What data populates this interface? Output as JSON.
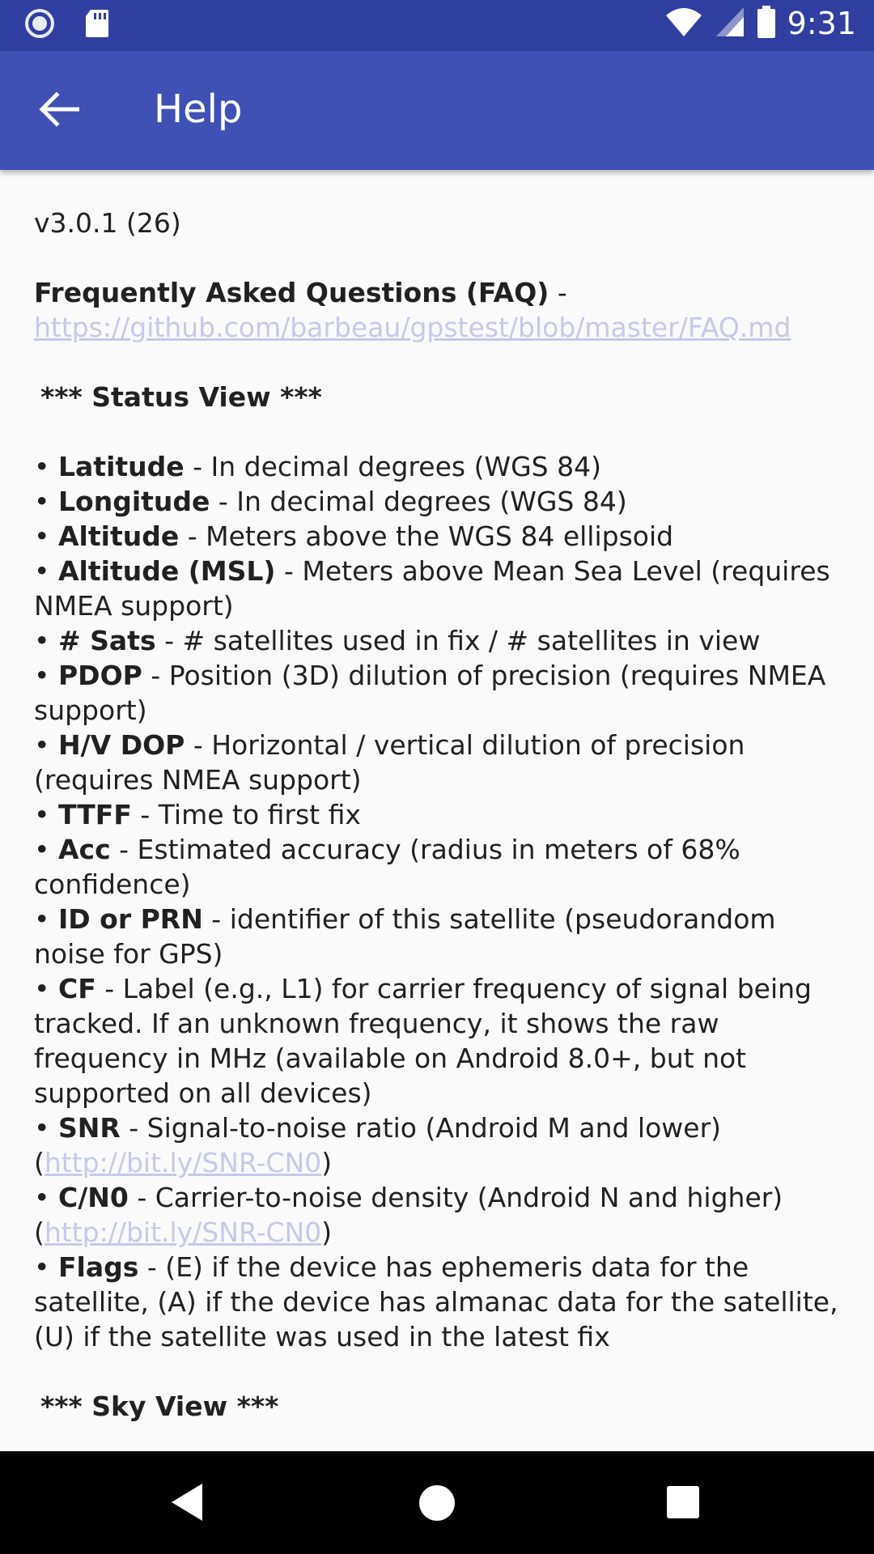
{
  "status_bar": {
    "time": "9:31",
    "icons": [
      "record-icon",
      "sd-card-icon",
      "wifi-icon",
      "signal-icon",
      "battery-icon"
    ]
  },
  "app_bar": {
    "title": "Help",
    "back_icon": "arrow-back-icon",
    "color": "#3f51b5"
  },
  "content": {
    "version": "v3.0.1 (26)",
    "faq_title": "Frequently Asked Questions (FAQ)",
    "faq_sep": " -",
    "faq_url": "https://github.com/barbeau/gpstest/blob/master/FAQ.md",
    "status_heading": "*** Status View ***",
    "items": [
      {
        "term": "Latitude",
        "desc": " - In decimal degrees (WGS 84)"
      },
      {
        "term": "Longitude",
        "desc": " - In decimal degrees (WGS 84)"
      },
      {
        "term": "Altitude",
        "desc": " - Meters above the WGS 84 ellipsoid"
      },
      {
        "term": "Altitude (MSL)",
        "desc": " - Meters above Mean Sea Level (requires NMEA support)"
      },
      {
        "term": "# Sats",
        "desc": " - # satellites used in fix / # satellites in view"
      },
      {
        "term": "PDOP",
        "desc": " - Position (3D) dilution of precision (requires NMEA support)"
      },
      {
        "term": "H/V DOP",
        "desc": " - Horizontal / vertical dilution of precision (requires NMEA support)"
      },
      {
        "term": "TTFF",
        "desc": " - Time to first fix"
      },
      {
        "term": "Acc",
        "desc": " - Estimated accuracy (radius in meters of 68% confidence)"
      },
      {
        "term": "ID or PRN",
        "desc": " - identifier of this satellite (pseudorandom noise for GPS)"
      },
      {
        "term": "CF",
        "desc": " - Label (e.g., L1) for carrier frequency of signal being tracked. If an unknown frequency, it shows the raw frequency in MHz (available on Android 8.0+, but not supported on all devices)"
      },
      {
        "term": "SNR",
        "desc": " - Signal-to-noise ratio (Android M and lower) (",
        "link": "http://bit.ly/SNR-CN0",
        "after": ")"
      },
      {
        "term": "C/N0",
        "desc": " - Carrier-to-noise density (Android N and higher) (",
        "link": "http://bit.ly/SNR-CN0",
        "after": ")"
      },
      {
        "term": "Flags",
        "desc": " - (E) if the device has ephemeris data for the satellite, (A) if the device has almanac data for the satellite, (U) if the satellite was used in the latest fix"
      }
    ],
    "sky_heading": "*** Sky View ***",
    "bullet": "•"
  },
  "nav_bar": {
    "icons": [
      "nav-back-icon",
      "nav-home-icon",
      "nav-recents-icon"
    ]
  }
}
